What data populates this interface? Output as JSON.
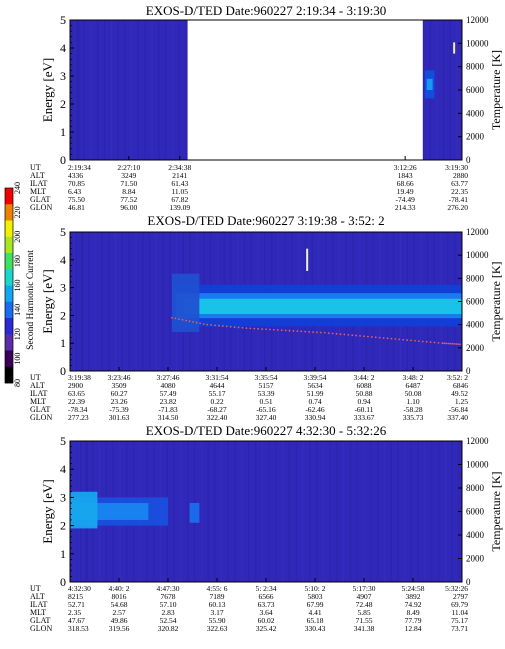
{
  "colorbar": {
    "label": "Second Harmonic Current",
    "ticks": [
      "80",
      "100",
      "120",
      "140",
      "160",
      "180",
      "200",
      "220",
      "240"
    ],
    "colors": [
      "#000000",
      "#3a0058",
      "#5a2ea8",
      "#2a2ad8",
      "#1a6cf0",
      "#10a8f0",
      "#18d8c8",
      "#40e060",
      "#a8e820",
      "#f0f000",
      "#f08000",
      "#f00000"
    ]
  },
  "chart_data": [
    {
      "type": "heatmap",
      "title": "EXOS-D/TED   Date:960227  2:19:34 - 3:19:30",
      "ylabel": "Energy [eV]",
      "y2label": "Temperature [K]",
      "ylim": [
        0,
        5
      ],
      "y2lim": [
        0,
        12000
      ],
      "yticks": [
        "0",
        "1",
        "2",
        "3",
        "4",
        "5"
      ],
      "y2ticks": [
        "0",
        "2000",
        "4000",
        "6000",
        "8000",
        "10000",
        "12000"
      ],
      "background": "#3028b8",
      "data_gaps": [
        [
          0.3,
          0.9
        ]
      ],
      "bands": [
        {
          "x0": 0.905,
          "x1": 0.93,
          "y0": 2.2,
          "y1": 3.2,
          "color": "#1050e0"
        },
        {
          "x0": 0.91,
          "x1": 0.925,
          "y0": 2.5,
          "y1": 2.9,
          "color": "#18a0f0"
        }
      ],
      "markers": [
        {
          "x": 0.98,
          "y0": 3.8,
          "y1": 4.2,
          "color": "#f0f0a0"
        }
      ],
      "rows": [
        {
          "name": "UT",
          "values": [
            "2:19:34",
            "2:27:10",
            "2:34:38",
            "3:12:26",
            "3:19:30"
          ]
        },
        {
          "name": "ALT",
          "values": [
            "4336",
            "3249",
            "2141",
            "1843",
            "2880"
          ]
        },
        {
          "name": "ILAT",
          "values": [
            "70.85",
            "71.50",
            "61.43",
            "68.66",
            "63.77"
          ]
        },
        {
          "name": "MLT",
          "values": [
            "6.43",
            "8.84",
            "11.05",
            "19.49",
            "22.35"
          ]
        },
        {
          "name": "GLAT",
          "values": [
            "75.50",
            "77.52",
            "67.82",
            "-74.49",
            "-78.41"
          ]
        },
        {
          "name": "GLON",
          "values": [
            "46.81",
            "96.00",
            "139.09",
            "214.33",
            "276.20"
          ]
        }
      ],
      "columns": [
        0.0,
        0.15,
        0.28,
        0.855,
        1.0
      ]
    },
    {
      "type": "heatmap",
      "title": "EXOS-D/TED   Date:960227  3:19:38 - 3:52: 2",
      "ylabel": "Energy [eV]",
      "y2label": "Temperature [K]",
      "ylim": [
        0,
        5
      ],
      "y2lim": [
        0,
        12000
      ],
      "yticks": [
        "0",
        "1",
        "2",
        "3",
        "4",
        "5"
      ],
      "y2ticks": [
        "0",
        "2000",
        "4000",
        "6000",
        "8000",
        "10000",
        "12000"
      ],
      "background": "#3028b8",
      "data_gaps": [],
      "bands": [
        {
          "x0": 0.26,
          "x1": 1.0,
          "y0": 1.6,
          "y1": 3.1,
          "color": "#1040d8"
        },
        {
          "x0": 0.27,
          "x1": 1.0,
          "y0": 1.9,
          "y1": 2.8,
          "color": "#1a80f0"
        },
        {
          "x0": 0.29,
          "x1": 1.0,
          "y0": 2.05,
          "y1": 2.6,
          "color": "#18c8e8"
        },
        {
          "x0": 0.26,
          "x1": 0.33,
          "y0": 1.4,
          "y1": 3.5,
          "color": "#2050d0"
        }
      ],
      "markers": [
        {
          "x": 0.605,
          "y0": 3.6,
          "y1": 4.4,
          "color": "#f0f0c8"
        }
      ],
      "temp_trace": {
        "color": "#e06060",
        "points": [
          [
            0.26,
            4600
          ],
          [
            0.35,
            4000
          ],
          [
            0.45,
            3700
          ],
          [
            0.55,
            3500
          ],
          [
            0.65,
            3300
          ],
          [
            0.75,
            3000
          ],
          [
            0.85,
            2700
          ],
          [
            0.95,
            2400
          ],
          [
            1.0,
            2300
          ]
        ]
      },
      "rows": [
        {
          "name": "UT",
          "values": [
            "3:19:38",
            "3:23:46",
            "3:27:46",
            "3:31:54",
            "3:35:54",
            "3:39:54",
            "3:44: 2",
            "3:48: 2",
            "3:52: 2"
          ]
        },
        {
          "name": "ALT",
          "values": [
            "2900",
            "3509",
            "4080",
            "4644",
            "5157",
            "5634",
            "6088",
            "6487",
            "6846"
          ]
        },
        {
          "name": "ILAT",
          "values": [
            "63.65",
            "60.27",
            "57.49",
            "55.17",
            "53.39",
            "51.99",
            "50.88",
            "50.08",
            "49.52"
          ]
        },
        {
          "name": "MLT",
          "values": [
            "22.39",
            "23.26",
            "23.82",
            "0.22",
            "0.51",
            "0.74",
            "0.94",
            "1.10",
            "1.25"
          ]
        },
        {
          "name": "GLAT",
          "values": [
            "-78.34",
            "-75.39",
            "-71.83",
            "-68.27",
            "-65.16",
            "-62.46",
            "-60.11",
            "-58.28",
            "-56.84"
          ]
        },
        {
          "name": "GLON",
          "values": [
            "277.23",
            "301.63",
            "314.50",
            "322.40",
            "327.40",
            "330.94",
            "333.67",
            "335.73",
            "337.40"
          ]
        }
      ],
      "columns": [
        0.0,
        0.125,
        0.25,
        0.375,
        0.5,
        0.625,
        0.75,
        0.875,
        1.0
      ]
    },
    {
      "type": "heatmap",
      "title": "EXOS-D/TED   Date:960227  4:32:30 - 5:32:26",
      "ylabel": "Energy [eV]",
      "y2label": "Temperature [K]",
      "ylim": [
        0,
        5
      ],
      "y2lim": [
        0,
        12000
      ],
      "yticks": [
        "0",
        "1",
        "2",
        "3",
        "4",
        "5"
      ],
      "y2ticks": [
        "0",
        "2000",
        "4000",
        "6000",
        "8000",
        "10000",
        "12000"
      ],
      "background": "#3028b8",
      "data_gaps": [],
      "bands": [
        {
          "x0": 0.0,
          "x1": 0.25,
          "y0": 2.0,
          "y1": 3.0,
          "color": "#1a50e0"
        },
        {
          "x0": 0.0,
          "x1": 0.2,
          "y0": 2.2,
          "y1": 2.8,
          "color": "#1888f0"
        },
        {
          "x0": 0.0,
          "x1": 0.07,
          "y0": 1.9,
          "y1": 3.2,
          "color": "#18a8f0"
        },
        {
          "x0": 0.305,
          "x1": 0.33,
          "y0": 2.1,
          "y1": 2.8,
          "color": "#1a70f0"
        }
      ],
      "markers": [],
      "rows": [
        {
          "name": "UT",
          "values": [
            "4:32:30",
            "4:40: 2",
            "4:47:30",
            "4:55: 6",
            "5: 2:34",
            "5:10: 2",
            "5:17:30",
            "5:24:58",
            "5:32:26"
          ]
        },
        {
          "name": "ALT",
          "values": [
            "8215",
            "8016",
            "7678",
            "7189",
            "6566",
            "5803",
            "4907",
            "3892",
            "2797"
          ]
        },
        {
          "name": "ILAT",
          "values": [
            "52.71",
            "54.68",
            "57.10",
            "60.13",
            "63.73",
            "67.99",
            "72.48",
            "74.92",
            "69.79"
          ]
        },
        {
          "name": "MLT",
          "values": [
            "2.35",
            "2.57",
            "2.83",
            "3.17",
            "3.64",
            "4.41",
            "5.85",
            "8.49",
            "11.04"
          ]
        },
        {
          "name": "GLAT",
          "values": [
            "47.67",
            "49.86",
            "52.54",
            "55.90",
            "60.02",
            "65.18",
            "71.55",
            "77.79",
            "75.17"
          ]
        },
        {
          "name": "GLON",
          "values": [
            "318.53",
            "319.56",
            "320.82",
            "322.63",
            "325.42",
            "330.43",
            "341.38",
            "12.84",
            "73.71"
          ]
        }
      ],
      "columns": [
        0.0,
        0.125,
        0.25,
        0.375,
        0.5,
        0.625,
        0.75,
        0.875,
        1.0
      ]
    }
  ]
}
